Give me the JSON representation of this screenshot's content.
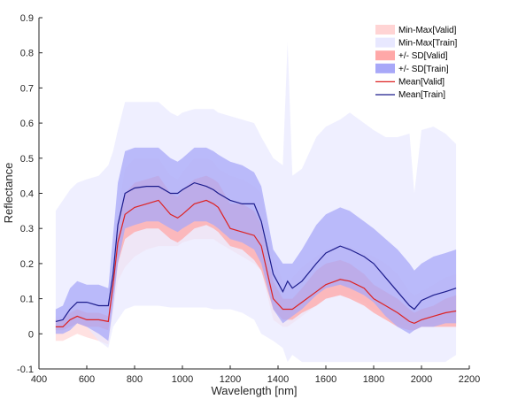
{
  "chart_data": {
    "type": "area",
    "xlabel": "Wavelength [nm]",
    "ylabel": "Reflectance",
    "xlim": [
      400,
      2200
    ],
    "ylim": [
      -0.1,
      0.9
    ],
    "xticks": [
      "400",
      "600",
      "800",
      "1000",
      "1200",
      "1400",
      "1600",
      "1800",
      "2000",
      "2200"
    ],
    "yticks": [
      "-0.1",
      "0",
      "0.1",
      "0.2",
      "0.3",
      "0.4",
      "0.5",
      "0.6",
      "0.7",
      "0.8",
      "0.9"
    ],
    "legend_position": "top-right",
    "grid": false,
    "x": [
      470,
      500,
      530,
      560,
      600,
      650,
      690,
      710,
      730,
      760,
      800,
      850,
      900,
      950,
      980,
      1000,
      1050,
      1100,
      1130,
      1150,
      1200,
      1250,
      1300,
      1330,
      1380,
      1420,
      1440,
      1460,
      1500,
      1560,
      1600,
      1660,
      1700,
      1760,
      1800,
      1850,
      1900,
      1950,
      1970,
      2000,
      2050,
      2100,
      2145
    ],
    "series": [
      {
        "name": "Min-Max[Valid]",
        "color": "#ffd4d4",
        "kind": "band",
        "lower": [
          -0.02,
          -0.02,
          -0.01,
          0.0,
          -0.01,
          -0.02,
          -0.03,
          0.06,
          0.15,
          0.19,
          0.22,
          0.24,
          0.25,
          0.25,
          0.25,
          0.26,
          0.27,
          0.27,
          0.27,
          0.26,
          0.24,
          0.22,
          0.2,
          0.18,
          0.04,
          0.02,
          0.02,
          0.03,
          0.05,
          0.08,
          0.1,
          0.11,
          0.11,
          0.09,
          0.07,
          0.05,
          0.03,
          0.02,
          0.02,
          0.02,
          0.03,
          0.04,
          0.05
        ],
        "upper": [
          0.05,
          0.05,
          0.08,
          0.09,
          0.08,
          0.08,
          0.08,
          0.2,
          0.35,
          0.47,
          0.5,
          0.5,
          0.5,
          0.45,
          0.44,
          0.46,
          0.5,
          0.5,
          0.49,
          0.47,
          0.45,
          0.44,
          0.42,
          0.4,
          0.22,
          0.15,
          0.14,
          0.16,
          0.19,
          0.22,
          0.24,
          0.25,
          0.25,
          0.23,
          0.22,
          0.2,
          0.17,
          0.12,
          0.11,
          0.12,
          0.14,
          0.16,
          0.17
        ]
      },
      {
        "name": "Min-Max[Train]",
        "color": "#e8e8ff",
        "kind": "band",
        "lower": [
          0.01,
          0.01,
          0.02,
          0.03,
          0.02,
          -0.02,
          -0.04,
          0.02,
          0.04,
          0.07,
          0.08,
          0.08,
          0.08,
          0.075,
          0.075,
          0.075,
          0.075,
          0.075,
          0.07,
          0.07,
          0.07,
          0.06,
          0.04,
          0.0,
          -0.02,
          -0.04,
          -0.08,
          -0.06,
          -0.08,
          -0.08,
          -0.08,
          -0.08,
          -0.08,
          -0.08,
          -0.08,
          -0.08,
          -0.08,
          -0.08,
          -0.08,
          -0.08,
          -0.08,
          -0.08,
          -0.06
        ],
        "upper": [
          0.35,
          0.38,
          0.41,
          0.43,
          0.44,
          0.45,
          0.48,
          0.52,
          0.58,
          0.66,
          0.66,
          0.66,
          0.66,
          0.63,
          0.62,
          0.63,
          0.64,
          0.64,
          0.64,
          0.63,
          0.62,
          0.61,
          0.6,
          0.56,
          0.5,
          0.48,
          0.83,
          0.45,
          0.47,
          0.56,
          0.59,
          0.61,
          0.63,
          0.6,
          0.58,
          0.56,
          0.56,
          0.57,
          0.4,
          0.58,
          0.59,
          0.57,
          0.54
        ]
      },
      {
        "name": "+/- SD[Valid]",
        "color": "#ffa8a8",
        "kind": "band",
        "lower": [
          0.01,
          0.01,
          0.02,
          0.03,
          0.02,
          0.02,
          0.01,
          0.1,
          0.2,
          0.27,
          0.29,
          0.3,
          0.3,
          0.27,
          0.26,
          0.27,
          0.3,
          0.31,
          0.3,
          0.29,
          0.25,
          0.24,
          0.21,
          0.18,
          0.07,
          0.04,
          0.04,
          0.04,
          0.06,
          0.08,
          0.1,
          0.11,
          0.1,
          0.08,
          0.06,
          0.04,
          0.02,
          0.01,
          0.01,
          0.02,
          0.02,
          0.02,
          0.02
        ],
        "upper": [
          0.04,
          0.04,
          0.06,
          0.07,
          0.06,
          0.06,
          0.05,
          0.17,
          0.3,
          0.4,
          0.43,
          0.44,
          0.45,
          0.4,
          0.39,
          0.41,
          0.44,
          0.45,
          0.44,
          0.43,
          0.37,
          0.37,
          0.35,
          0.31,
          0.15,
          0.1,
          0.1,
          0.1,
          0.13,
          0.18,
          0.2,
          0.21,
          0.2,
          0.17,
          0.14,
          0.12,
          0.1,
          0.07,
          0.06,
          0.07,
          0.08,
          0.1,
          0.11
        ]
      },
      {
        "name": "+/- SD[Train]",
        "color": "#a8a8f8",
        "kind": "band",
        "lower": [
          0.0,
          0.0,
          0.01,
          0.03,
          0.02,
          0.0,
          -0.02,
          0.08,
          0.2,
          0.3,
          0.31,
          0.32,
          0.32,
          0.3,
          0.29,
          0.3,
          0.32,
          0.32,
          0.31,
          0.3,
          0.27,
          0.26,
          0.24,
          0.2,
          0.07,
          0.03,
          0.04,
          0.05,
          0.07,
          0.11,
          0.13,
          0.14,
          0.13,
          0.11,
          0.09,
          0.05,
          0.02,
          0.0,
          0.01,
          0.02,
          0.02,
          0.03,
          0.03
        ],
        "upper": [
          0.07,
          0.08,
          0.13,
          0.15,
          0.14,
          0.14,
          0.13,
          0.28,
          0.43,
          0.52,
          0.53,
          0.53,
          0.53,
          0.5,
          0.49,
          0.5,
          0.53,
          0.53,
          0.52,
          0.51,
          0.49,
          0.48,
          0.46,
          0.42,
          0.24,
          0.2,
          0.2,
          0.2,
          0.24,
          0.31,
          0.34,
          0.36,
          0.35,
          0.32,
          0.3,
          0.27,
          0.24,
          0.2,
          0.18,
          0.2,
          0.22,
          0.23,
          0.24
        ]
      },
      {
        "name": "Mean[Valid]",
        "color": "#dd2222",
        "kind": "line",
        "values": [
          0.02,
          0.02,
          0.04,
          0.05,
          0.04,
          0.04,
          0.035,
          0.14,
          0.26,
          0.34,
          0.36,
          0.37,
          0.38,
          0.34,
          0.33,
          0.34,
          0.37,
          0.38,
          0.37,
          0.36,
          0.3,
          0.29,
          0.28,
          0.25,
          0.1,
          0.07,
          0.07,
          0.07,
          0.09,
          0.12,
          0.14,
          0.155,
          0.15,
          0.13,
          0.1,
          0.08,
          0.06,
          0.035,
          0.03,
          0.04,
          0.05,
          0.06,
          0.065
        ]
      },
      {
        "name": "Mean[Train]",
        "color": "#1c1c8c",
        "kind": "line",
        "values": [
          0.035,
          0.04,
          0.07,
          0.09,
          0.09,
          0.08,
          0.08,
          0.17,
          0.31,
          0.4,
          0.415,
          0.42,
          0.42,
          0.4,
          0.4,
          0.41,
          0.43,
          0.42,
          0.41,
          0.4,
          0.38,
          0.37,
          0.37,
          0.32,
          0.17,
          0.12,
          0.15,
          0.13,
          0.15,
          0.2,
          0.23,
          0.25,
          0.24,
          0.22,
          0.2,
          0.16,
          0.12,
          0.08,
          0.07,
          0.095,
          0.11,
          0.12,
          0.13
        ]
      }
    ]
  }
}
